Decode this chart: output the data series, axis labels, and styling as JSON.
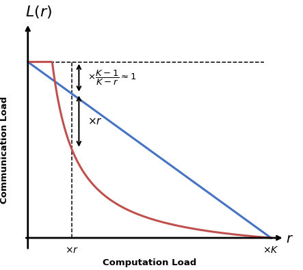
{
  "K": 10,
  "r_mark": 1.8,
  "line_color": "#4472C4",
  "curve_color": "#C0504D",
  "dashed_color": "#000000",
  "arrow_color": "#000000",
  "bg_color": "#ffffff",
  "ylabel_text": "Communication Load",
  "xlabel_text": "Computation Load",
  "xlim_min": -0.3,
  "xlim_max": 11.2,
  "ylim_min": -0.12,
  "ylim_max": 1.28
}
